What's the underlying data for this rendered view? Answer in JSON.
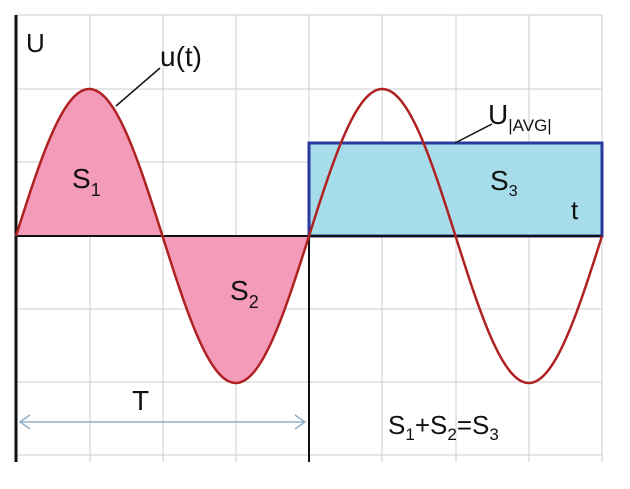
{
  "labels": {
    "u_axis": "U",
    "curve": "u(t)",
    "avg_main": "U",
    "avg_sub": "|AVG|",
    "t_axis": "t",
    "s1_main": "S",
    "s1_sub": "1",
    "s2_main": "S",
    "s2_sub": "2",
    "s3_main": "S",
    "s3_sub": "3",
    "period": "T",
    "eq_s1": "S",
    "eq_s1_sub": "1",
    "eq_plus": "+S",
    "eq_s2_sub": "2",
    "eq_equals": "=S",
    "eq_s3_sub": "3"
  },
  "colors": {
    "grid": "#c8ccd2",
    "axis": "#111111",
    "sine": "#b02222",
    "lobe_fill": "#f39bb8",
    "rect_fill": "#a7dceb",
    "rect_stroke": "#283a9e",
    "period_arrow": "#8fb0c8"
  }
}
